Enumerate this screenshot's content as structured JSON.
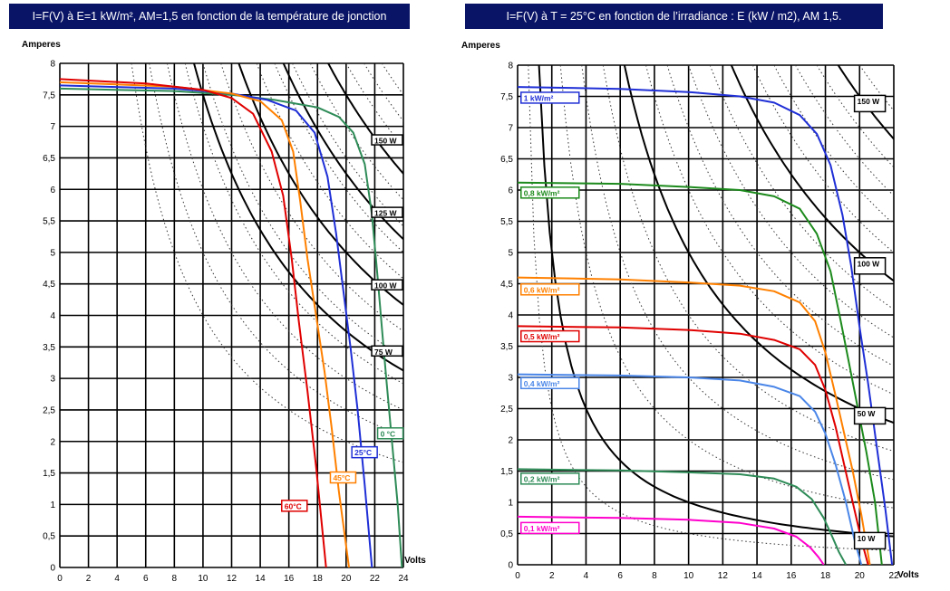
{
  "chart_data": [
    {
      "type": "line",
      "title": "I=F(V) à E=1 kW/m², AM=1,5 en fonction de la température de jonction",
      "xlabel": "Volts",
      "ylabel": "Amperes",
      "xlim": [
        0,
        24
      ],
      "ylim": [
        0,
        8
      ],
      "xticks": [
        "0",
        "2",
        "4",
        "6",
        "8",
        "10",
        "12",
        "14",
        "16",
        "18",
        "20",
        "22",
        "24"
      ],
      "yticks": [
        "0",
        "0,5",
        "1",
        "1,5",
        "2",
        "2,5",
        "3",
        "3,5",
        "4",
        "4,5",
        "5",
        "5,5",
        "6",
        "6,5",
        "7",
        "7,5",
        "8"
      ],
      "grid": true,
      "series": [
        {
          "name": "0 °C",
          "color": "#2e8b57",
          "x": [
            0,
            8,
            12,
            15,
            18,
            19.5,
            20.5,
            21.3,
            21.8,
            22.2,
            22.5,
            22.8,
            23.2,
            23.6,
            23.9
          ],
          "y": [
            7.6,
            7.56,
            7.5,
            7.42,
            7.3,
            7.15,
            6.9,
            6.4,
            5.6,
            4.6,
            3.8,
            3.0,
            2.0,
            1.0,
            0
          ]
        },
        {
          "name": "25°C",
          "color": "#1f2fd6",
          "x": [
            0,
            8,
            12,
            14.5,
            16.5,
            17.8,
            18.7,
            19.3,
            19.8,
            20.3,
            20.8,
            21.3,
            21.8
          ],
          "y": [
            7.65,
            7.6,
            7.52,
            7.42,
            7.25,
            6.9,
            6.2,
            5.3,
            4.4,
            3.5,
            2.5,
            1.3,
            0
          ]
        },
        {
          "name": "45°C",
          "color": "#ff8000",
          "x": [
            0,
            8,
            12,
            14,
            15.5,
            16.3,
            16.8,
            17.3,
            17.9,
            18.5,
            19.0,
            19.5,
            20.2
          ],
          "y": [
            7.7,
            7.63,
            7.52,
            7.4,
            7.1,
            6.6,
            5.8,
            4.9,
            4.0,
            3.1,
            2.2,
            1.2,
            0
          ]
        },
        {
          "name": "60°C",
          "color": "#e00000",
          "x": [
            0,
            6,
            10,
            12,
            13.5,
            14.8,
            15.6,
            16.2,
            16.7,
            17.3,
            17.9,
            18.6
          ],
          "y": [
            7.75,
            7.68,
            7.58,
            7.45,
            7.2,
            6.6,
            5.9,
            4.9,
            3.9,
            2.8,
            1.6,
            0
          ]
        }
      ],
      "power_curves": [
        {
          "name": "150 W",
          "watts": 150
        },
        {
          "name": "125 W",
          "watts": 125
        },
        {
          "name": "100 W",
          "watts": 100
        },
        {
          "name": "75 W",
          "watts": 75
        }
      ]
    },
    {
      "type": "line",
      "title": "I=F(V) à T = 25°C  en fonction de l’irradiance : E (kW / m2), AM 1,5.",
      "xlabel": "Volts",
      "ylabel": "Amperes",
      "xlim": [
        0,
        22
      ],
      "ylim": [
        0,
        8
      ],
      "xticks": [
        "0",
        "2",
        "4",
        "6",
        "8",
        "10",
        "12",
        "14",
        "16",
        "18",
        "20",
        "22"
      ],
      "yticks": [
        "0",
        "0,5",
        "1",
        "1,5",
        "2",
        "2,5",
        "3",
        "3,5",
        "4",
        "4,5",
        "5",
        "5,5",
        "6",
        "6,5",
        "7",
        "7,5",
        "8"
      ],
      "grid": true,
      "series": [
        {
          "name": "1 kW/m²",
          "color": "#1f2fd6",
          "x": [
            0,
            6,
            10,
            13,
            15,
            16.5,
            17.5,
            18.3,
            19,
            19.5,
            20,
            20.5,
            21,
            21.5,
            21.9
          ],
          "y": [
            7.65,
            7.62,
            7.57,
            7.5,
            7.4,
            7.2,
            6.9,
            6.4,
            5.6,
            4.8,
            3.8,
            2.9,
            1.9,
            0.9,
            0
          ]
        },
        {
          "name": "0,8 kW/m²",
          "color": "#1c8a1c",
          "x": [
            0,
            6,
            10,
            13,
            15,
            16.5,
            17.5,
            18.3,
            18.9,
            19.4,
            19.9,
            20.4,
            20.9,
            21.3
          ],
          "y": [
            6.12,
            6.1,
            6.05,
            6.0,
            5.9,
            5.7,
            5.3,
            4.7,
            3.9,
            3.2,
            2.5,
            1.8,
            1.0,
            0
          ]
        },
        {
          "name": "0,6 kW/m²",
          "color": "#ff8000",
          "x": [
            0,
            6,
            10,
            13,
            15,
            16.5,
            17.4,
            18.0,
            18.6,
            19.1,
            19.6,
            20.1,
            20.6
          ],
          "y": [
            4.6,
            4.57,
            4.52,
            4.47,
            4.38,
            4.2,
            3.9,
            3.4,
            2.7,
            2.1,
            1.5,
            0.8,
            0
          ]
        },
        {
          "name": "0,5 kW/m²",
          "color": "#e00000",
          "x": [
            0,
            6,
            10,
            13,
            15,
            16.5,
            17.4,
            18.0,
            18.6,
            19.1,
            19.6,
            20.1,
            20.5
          ],
          "y": [
            3.82,
            3.8,
            3.76,
            3.7,
            3.6,
            3.45,
            3.2,
            2.8,
            2.2,
            1.6,
            1.0,
            0.4,
            0
          ]
        },
        {
          "name": "0,4 kW/m²",
          "color": "#4a86e8",
          "x": [
            0,
            6,
            10,
            13,
            15,
            16.5,
            17.4,
            18.0,
            18.6,
            19.2,
            19.7,
            20.1
          ],
          "y": [
            3.05,
            3.03,
            3.0,
            2.95,
            2.85,
            2.7,
            2.45,
            2.1,
            1.6,
            1.0,
            0.4,
            0
          ]
        },
        {
          "name": "0,2 kW/m²",
          "color": "#2e8b57",
          "x": [
            0,
            6,
            10,
            13,
            15,
            16.3,
            17.2,
            17.9,
            18.4,
            18.8,
            19.2
          ],
          "y": [
            1.53,
            1.51,
            1.48,
            1.45,
            1.38,
            1.25,
            1.05,
            0.75,
            0.45,
            0.2,
            0
          ]
        },
        {
          "name": "0,1 kW/m²",
          "color": "#ff00cc",
          "x": [
            0,
            6,
            10,
            13,
            15,
            16.3,
            17.1,
            17.6,
            17.9
          ],
          "y": [
            0.77,
            0.75,
            0.72,
            0.67,
            0.58,
            0.45,
            0.28,
            0.12,
            0
          ]
        }
      ],
      "power_curves": [
        {
          "name": "150 W",
          "watts": 150
        },
        {
          "name": "100 W",
          "watts": 100
        },
        {
          "name": "50 W",
          "watts": 50
        },
        {
          "name": "10 W",
          "watts": 10
        }
      ]
    }
  ]
}
